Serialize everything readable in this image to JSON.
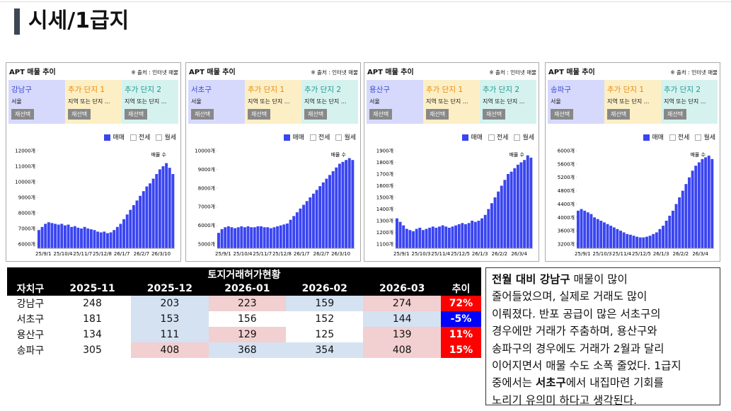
{
  "header": {
    "title": "시세/1급지"
  },
  "panels": [
    {
      "title": "APT 매물 추이",
      "source": "※ 출처 : 인터넷 매물",
      "region": {
        "name": "강남구",
        "sub": "서울"
      },
      "add1": {
        "name": "추가 단지 1",
        "sub": "지역 또는 단지 ..."
      },
      "add2": {
        "name": "추가 단지 2",
        "sub": "지역 또는 단지 ..."
      },
      "button": "재선택",
      "legend": [
        "매매",
        "전세",
        "월세"
      ],
      "series_label": "매물 수",
      "color": "#3a45f0",
      "ylim": [
        6000,
        12000
      ],
      "yticks": [
        {
          "value": 6000,
          "label": "6000개"
        },
        {
          "value": 7000,
          "label": "7000개"
        },
        {
          "value": 8000,
          "label": "8000개"
        },
        {
          "value": 9000,
          "label": "9000개"
        },
        {
          "value": 10000,
          "label": "10000개"
        },
        {
          "value": 11000,
          "label": "11000개"
        },
        {
          "value": 12000,
          "label": "12000개"
        }
      ],
      "xticks": [
        "25/9/1",
        "25/10/4",
        "25/11/7",
        "25/12/8",
        "26/1/7",
        "26/2/7",
        "26/3/10"
      ],
      "values": [
        6900,
        7100,
        7300,
        7400,
        7350,
        7300,
        7250,
        7300,
        7200,
        7250,
        7100,
        7150,
        7050,
        7000,
        7100,
        7000,
        6950,
        6900,
        6800,
        6750,
        6800,
        6700,
        6750,
        6900,
        7100,
        7300,
        7600,
        7900,
        8200,
        8500,
        8800,
        9100,
        9400,
        9700,
        9900,
        10200,
        10500,
        10800,
        11000,
        11200,
        10900,
        10500
      ]
    },
    {
      "title": "APT 매물 추이",
      "source": "※ 출처 : 인터넷 매물",
      "region": {
        "name": "서초구",
        "sub": "서울"
      },
      "add1": {
        "name": "추가 단지 1",
        "sub": "지역 또는 단지 ..."
      },
      "add2": {
        "name": "추가 단지 2",
        "sub": "지역 또는 단지 ..."
      },
      "button": "재선택",
      "legend": [
        "매매",
        "전세",
        "월세"
      ],
      "series_label": "매물 수",
      "color": "#3a45f0",
      "ylim": [
        5000,
        10000
      ],
      "yticks": [
        {
          "value": 5000,
          "label": "5000개"
        },
        {
          "value": 6000,
          "label": "6000개"
        },
        {
          "value": 7000,
          "label": "7000개"
        },
        {
          "value": 8000,
          "label": "8000개"
        },
        {
          "value": 9000,
          "label": "9000개"
        },
        {
          "value": 10000,
          "label": "10000개"
        }
      ],
      "xticks": [
        "25/9/1",
        "25/10/4",
        "25/11/7",
        "25/12/8",
        "26/1/7",
        "26/2/7",
        "26/3/10"
      ],
      "values": [
        5600,
        5800,
        5900,
        5950,
        5900,
        5850,
        5900,
        5950,
        5900,
        5950,
        5900,
        5900,
        5950,
        5950,
        5900,
        5900,
        5850,
        5900,
        5950,
        6000,
        6050,
        6100,
        6300,
        6500,
        6700,
        6900,
        7100,
        7300,
        7500,
        7700,
        7900,
        8100,
        8300,
        8500,
        8700,
        8900,
        9100,
        9300,
        9400,
        9500,
        9600,
        9500
      ]
    },
    {
      "title": "APT 매물 추이",
      "source": "※ 출처 : 인터넷 매물",
      "region": {
        "name": "용산구",
        "sub": "서울"
      },
      "add1": {
        "name": "추가 단지 1",
        "sub": "지역 또는 단지 ..."
      },
      "add2": {
        "name": "추가 단지 2",
        "sub": "지역 또는 단지 ..."
      },
      "button": "재선택",
      "legend": [
        "매매",
        "전세",
        "월세"
      ],
      "series_label": "매물 수",
      "color": "#3a45f0",
      "ylim": [
        1100,
        1900
      ],
      "yticks": [
        {
          "value": 1100,
          "label": "1100개"
        },
        {
          "value": 1200,
          "label": "1200개"
        },
        {
          "value": 1300,
          "label": "1300개"
        },
        {
          "value": 1400,
          "label": "1400개"
        },
        {
          "value": 1500,
          "label": "1500개"
        },
        {
          "value": 1600,
          "label": "1600개"
        },
        {
          "value": 1700,
          "label": "1700개"
        },
        {
          "value": 1800,
          "label": "1800개"
        },
        {
          "value": 1900,
          "label": "1900개"
        }
      ],
      "xticks": [
        "25/9/1",
        "25/10/3",
        "25/11/4",
        "25/12/5",
        "26/1/3",
        "26/2/2",
        "26/3/4"
      ],
      "values": [
        1320,
        1290,
        1260,
        1230,
        1220,
        1210,
        1230,
        1240,
        1220,
        1230,
        1240,
        1250,
        1240,
        1250,
        1260,
        1250,
        1240,
        1250,
        1260,
        1270,
        1280,
        1270,
        1280,
        1300,
        1290,
        1300,
        1320,
        1350,
        1400,
        1450,
        1500,
        1550,
        1600,
        1650,
        1700,
        1720,
        1750,
        1780,
        1800,
        1820,
        1860,
        1840
      ]
    },
    {
      "title": "APT 매물 추이",
      "source": "※ 출처 : 인터넷 매물",
      "region": {
        "name": "송파구",
        "sub": "서울"
      },
      "add1": {
        "name": "추가 단지 1",
        "sub": "지역 또는 단지 ..."
      },
      "add2": {
        "name": "추가 단지 2",
        "sub": "지역 또는 단지 ..."
      },
      "button": "재선택",
      "legend": [
        "매매",
        "전세",
        "월세"
      ],
      "series_label": "매물 수",
      "color": "#3a45f0",
      "ylim": [
        3200,
        6000
      ],
      "yticks": [
        {
          "value": 3200,
          "label": "3200개"
        },
        {
          "value": 3600,
          "label": "3600개"
        },
        {
          "value": 4000,
          "label": "4000개"
        },
        {
          "value": 4400,
          "label": "4400개"
        },
        {
          "value": 4800,
          "label": "4800개"
        },
        {
          "value": 5200,
          "label": "5200개"
        },
        {
          "value": 5600,
          "label": "5600개"
        },
        {
          "value": 6000,
          "label": "6000개"
        }
      ],
      "xticks": [
        "25/9/1",
        "25/10/3",
        "25/11/4",
        "25/12/5",
        "26/1/3",
        "26/2/2",
        "26/3/4"
      ],
      "values": [
        4200,
        4250,
        4200,
        4150,
        4100,
        4000,
        3950,
        3900,
        3850,
        3800,
        3750,
        3700,
        3650,
        3600,
        3550,
        3500,
        3480,
        3450,
        3420,
        3400,
        3400,
        3420,
        3450,
        3500,
        3550,
        3650,
        3750,
        3900,
        4050,
        4200,
        4400,
        4600,
        4800,
        5000,
        5200,
        5400,
        5550,
        5650,
        5750,
        5800,
        5850,
        5750
      ]
    }
  ],
  "table": {
    "title": "토지거래허가현황",
    "columns": [
      "자치구",
      "2025-11",
      "2025-12",
      "2026-01",
      "2026-02",
      "2026-03",
      "추이"
    ],
    "rows": [
      [
        "강남구",
        248,
        203,
        223,
        159,
        274,
        "72%"
      ],
      [
        "서초구",
        181,
        153,
        156,
        152,
        144,
        "-5%"
      ],
      [
        "용산구",
        134,
        111,
        129,
        125,
        139,
        "11%"
      ],
      [
        "송파구",
        305,
        408,
        368,
        354,
        408,
        "15%"
      ]
    ],
    "cell_colors": [
      [
        "#ffffff",
        "#ffffff",
        "#d5e2f2",
        "#f2cfd0",
        "#d5e2f2",
        "#f2cfd0",
        "#ff0000"
      ],
      [
        "#ffffff",
        "#ffffff",
        "#d5e2f2",
        "#ffffff",
        "#ffffff",
        "#d5e2f2",
        "#0000ff"
      ],
      [
        "#ffffff",
        "#ffffff",
        "#d5e2f2",
        "#f2cfd0",
        "#ffffff",
        "#f2cfd0",
        "#ff0000"
      ],
      [
        "#ffffff",
        "#ffffff",
        "#f2cfd0",
        "#d5e2f2",
        "#d5e2f2",
        "#f2cfd0",
        "#ff0000"
      ]
    ]
  },
  "note": {
    "lines": [
      [
        {
          "text": "전월 대비 강남구",
          "bold": true
        },
        {
          "text": " 매물이 많이",
          "bold": false
        }
      ],
      [
        {
          "text": "줄어들었으며, 실제로 거래도 많이",
          "bold": false
        }
      ],
      [
        {
          "text": "이뤄졌다. 반포 공급이 많은 서초구의",
          "bold": false
        }
      ],
      [
        {
          "text": "경우에만 거래가 주춤하며, 용산구와",
          "bold": false
        }
      ],
      [
        {
          "text": "송파구의 경우에도 거래가 2월과 달리",
          "bold": false
        }
      ],
      [
        {
          "text": "이어지면서 매물 수도 소폭 줄었다. 1급지",
          "bold": false
        }
      ],
      [
        {
          "text": "중에서는 ",
          "bold": false
        },
        {
          "text": "서초구",
          "bold": true
        },
        {
          "text": "에서 내집마련 기회를",
          "bold": false
        }
      ],
      [
        {
          "text": "노리기 유의미 하다고 생각된다.",
          "bold": false
        }
      ]
    ]
  }
}
